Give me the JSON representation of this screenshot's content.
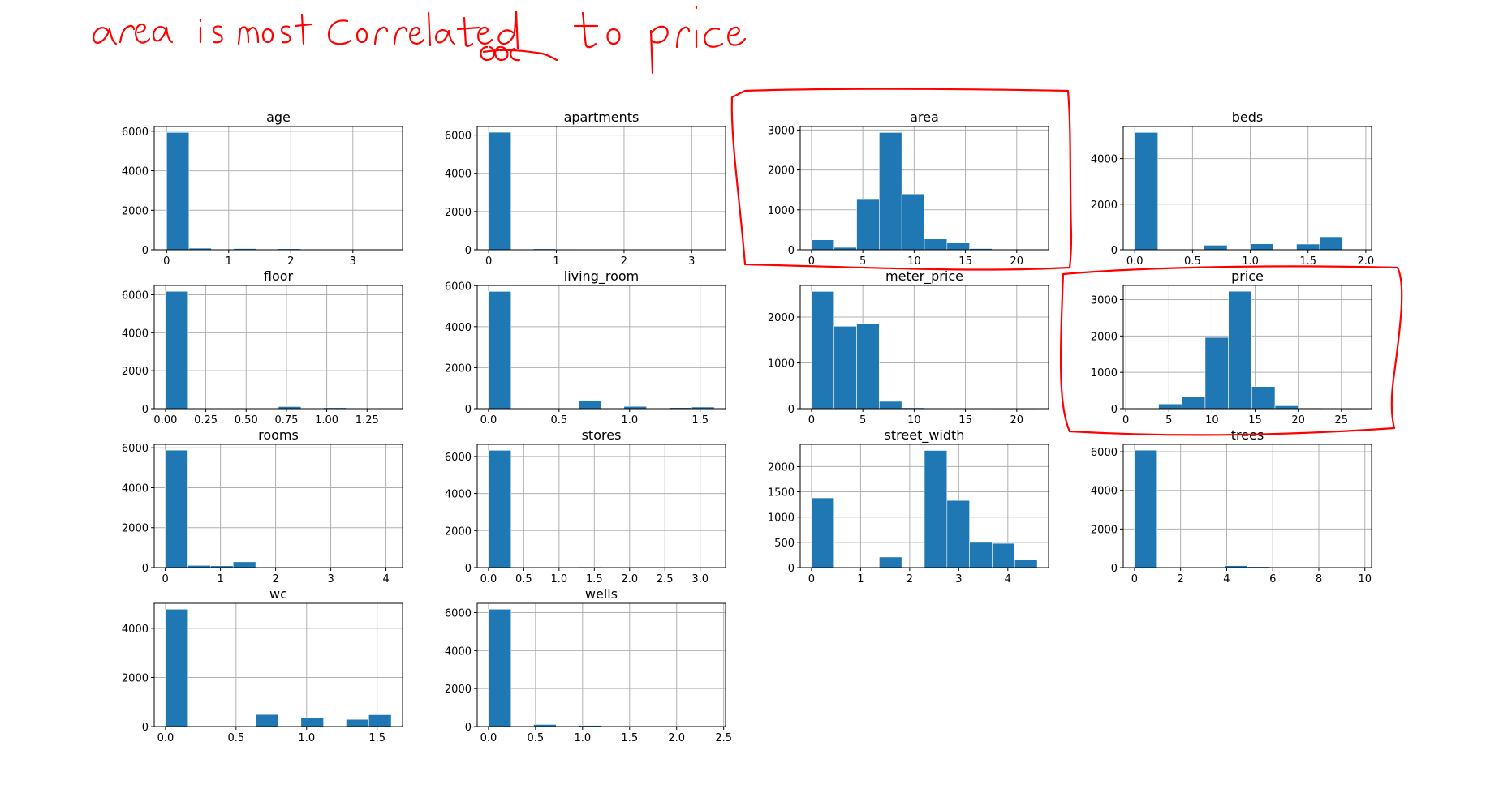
{
  "annotation": {
    "text": "area is most correlated to price",
    "color": "#ff0000"
  },
  "bar_color": "#1f77b4",
  "grid_color": "#b0b0b0",
  "chart_data": [
    {
      "type": "bar",
      "title": "age",
      "bins": [
        [
          0.0,
          0.36,
          5940
        ],
        [
          0.36,
          0.72,
          80
        ],
        [
          0.72,
          1.08,
          10
        ],
        [
          1.08,
          1.44,
          60
        ],
        [
          1.44,
          1.8,
          10
        ],
        [
          1.8,
          2.16,
          50
        ],
        [
          2.16,
          2.52,
          10
        ],
        [
          2.52,
          2.88,
          20
        ],
        [
          2.88,
          3.24,
          10
        ],
        [
          3.24,
          3.6,
          20
        ]
      ],
      "xlim": [
        -0.2,
        3.8
      ],
      "ylim": [
        0,
        6240
      ],
      "xticks": [
        0,
        1,
        2,
        3
      ],
      "xticklabels": [
        "0",
        "1",
        "2",
        "3"
      ],
      "yticks": [
        0,
        2000,
        4000,
        6000
      ],
      "yticklabels": [
        "0",
        "2000",
        "4000",
        "6000"
      ],
      "grid": true
    },
    {
      "type": "bar",
      "title": "apartments",
      "bins": [
        [
          0.0,
          0.33,
          6150
        ],
        [
          0.33,
          0.66,
          0
        ],
        [
          0.66,
          0.99,
          50
        ],
        [
          0.99,
          1.32,
          30
        ],
        [
          1.32,
          1.65,
          20
        ],
        [
          1.65,
          1.98,
          0
        ],
        [
          1.98,
          2.31,
          0
        ],
        [
          2.31,
          2.64,
          0
        ],
        [
          2.64,
          2.97,
          0
        ],
        [
          2.97,
          3.3,
          10
        ]
      ],
      "xlim": [
        -0.17,
        3.5
      ],
      "ylim": [
        0,
        6450
      ],
      "xticks": [
        0,
        1,
        2,
        3
      ],
      "xticklabels": [
        "0",
        "1",
        "2",
        "3"
      ],
      "yticks": [
        0,
        2000,
        4000,
        6000
      ],
      "yticklabels": [
        "0",
        "2000",
        "4000",
        "6000"
      ],
      "grid": true
    },
    {
      "type": "bar",
      "title": "area",
      "bins": [
        [
          0,
          2.2,
          250
        ],
        [
          2.2,
          4.4,
          60
        ],
        [
          4.4,
          6.6,
          1260
        ],
        [
          6.6,
          8.8,
          2940
        ],
        [
          8.8,
          11.0,
          1400
        ],
        [
          11.0,
          13.2,
          270
        ],
        [
          13.2,
          15.4,
          170
        ],
        [
          15.4,
          17.6,
          30
        ],
        [
          17.6,
          19.8,
          10
        ],
        [
          19.8,
          22.0,
          5
        ]
      ],
      "xlim": [
        -1.1,
        23.1
      ],
      "ylim": [
        0,
        3090
      ],
      "xticks": [
        0,
        5,
        10,
        15,
        20
      ],
      "xticklabels": [
        "0",
        "5",
        "10",
        "15",
        "20"
      ],
      "yticks": [
        0,
        1000,
        2000,
        3000
      ],
      "yticklabels": [
        "0",
        "1000",
        "2000",
        "3000"
      ],
      "grid": true
    },
    {
      "type": "bar",
      "title": "beds",
      "bins": [
        [
          0.0,
          0.2,
          5150
        ],
        [
          0.2,
          0.4,
          0
        ],
        [
          0.4,
          0.6,
          0
        ],
        [
          0.6,
          0.8,
          200
        ],
        [
          0.8,
          1.0,
          0
        ],
        [
          1.0,
          1.2,
          260
        ],
        [
          1.2,
          1.4,
          0
        ],
        [
          1.4,
          1.6,
          250
        ],
        [
          1.6,
          1.8,
          570
        ],
        [
          1.8,
          2.0,
          0
        ]
      ],
      "xlim": [
        -0.1,
        2.05
      ],
      "ylim": [
        0,
        5410
      ],
      "xticks": [
        0.0,
        0.5,
        1.0,
        1.5,
        2.0
      ],
      "xticklabels": [
        "0.0",
        "0.5",
        "1.0",
        "1.5",
        "2.0"
      ],
      "yticks": [
        0,
        2000,
        4000
      ],
      "yticklabels": [
        "0",
        "2000",
        "4000"
      ],
      "grid": true
    },
    {
      "type": "bar",
      "title": "floor",
      "bins": [
        [
          0.0,
          0.14,
          6180
        ],
        [
          0.14,
          0.28,
          0
        ],
        [
          0.28,
          0.42,
          0
        ],
        [
          0.42,
          0.56,
          0
        ],
        [
          0.56,
          0.7,
          0
        ],
        [
          0.7,
          0.84,
          110
        ],
        [
          0.84,
          0.98,
          0
        ],
        [
          0.98,
          1.12,
          50
        ],
        [
          1.12,
          1.26,
          0
        ],
        [
          1.26,
          1.4,
          10
        ]
      ],
      "xlim": [
        -0.07,
        1.47
      ],
      "ylim": [
        0,
        6490
      ],
      "xticks": [
        0.0,
        0.25,
        0.5,
        0.75,
        1.0,
        1.25
      ],
      "xticklabels": [
        "0.00",
        "0.25",
        "0.50",
        "0.75",
        "1.00",
        "1.25"
      ],
      "yticks": [
        0,
        2000,
        4000,
        6000
      ],
      "yticklabels": [
        "0",
        "2000",
        "4000",
        "6000"
      ],
      "grid": true
    },
    {
      "type": "bar",
      "title": "living_room",
      "bins": [
        [
          0.0,
          0.16,
          5720
        ],
        [
          0.16,
          0.32,
          0
        ],
        [
          0.32,
          0.48,
          0
        ],
        [
          0.48,
          0.64,
          0
        ],
        [
          0.64,
          0.8,
          400
        ],
        [
          0.8,
          0.96,
          0
        ],
        [
          0.96,
          1.12,
          110
        ],
        [
          1.12,
          1.28,
          0
        ],
        [
          1.28,
          1.44,
          50
        ],
        [
          1.44,
          1.6,
          80
        ]
      ],
      "xlim": [
        -0.08,
        1.68
      ],
      "ylim": [
        0,
        6010
      ],
      "xticks": [
        0.0,
        0.5,
        1.0,
        1.5
      ],
      "xticklabels": [
        "0.0",
        "0.5",
        "1.0",
        "1.5"
      ],
      "yticks": [
        0,
        2000,
        4000,
        6000
      ],
      "yticklabels": [
        "0",
        "2000",
        "4000",
        "6000"
      ],
      "grid": true
    },
    {
      "type": "bar",
      "title": "meter_price",
      "bins": [
        [
          0,
          2.2,
          2560
        ],
        [
          2.2,
          4.4,
          1800
        ],
        [
          4.4,
          6.6,
          1860
        ],
        [
          6.6,
          8.8,
          160
        ],
        [
          8.8,
          11.0,
          20
        ],
        [
          11.0,
          13.2,
          10
        ],
        [
          13.2,
          15.4,
          5
        ],
        [
          15.4,
          17.6,
          3
        ],
        [
          17.6,
          19.8,
          2
        ],
        [
          19.8,
          22.0,
          2
        ]
      ],
      "xlim": [
        -1.1,
        23.1
      ],
      "ylim": [
        0,
        2690
      ],
      "xticks": [
        0,
        5,
        10,
        15,
        20
      ],
      "xticklabels": [
        "0",
        "5",
        "10",
        "15",
        "20"
      ],
      "yticks": [
        0,
        1000,
        2000
      ],
      "yticklabels": [
        "0",
        "1000",
        "2000"
      ],
      "grid": true
    },
    {
      "type": "bar",
      "title": "price",
      "bins": [
        [
          1.1,
          3.8,
          10
        ],
        [
          3.8,
          6.5,
          130
        ],
        [
          6.5,
          9.2,
          330
        ],
        [
          9.2,
          11.9,
          1960
        ],
        [
          11.9,
          14.6,
          3230
        ],
        [
          14.6,
          17.3,
          610
        ],
        [
          17.3,
          20.0,
          80
        ],
        [
          20.0,
          22.7,
          20
        ],
        [
          22.7,
          25.4,
          5
        ],
        [
          25.4,
          28.1,
          2
        ]
      ],
      "xlim": [
        -0.3,
        28.5
      ],
      "ylim": [
        0,
        3390
      ],
      "xticks": [
        0,
        5,
        10,
        15,
        20,
        25
      ],
      "xticklabels": [
        "0",
        "5",
        "10",
        "15",
        "20",
        "25"
      ],
      "yticks": [
        0,
        1000,
        2000,
        3000
      ],
      "yticklabels": [
        "0",
        "1000",
        "2000",
        "3000"
      ],
      "grid": true
    },
    {
      "type": "bar",
      "title": "rooms",
      "bins": [
        [
          0.0,
          0.41,
          5880
        ],
        [
          0.41,
          0.82,
          110
        ],
        [
          0.82,
          1.23,
          90
        ],
        [
          1.23,
          1.64,
          290
        ],
        [
          1.64,
          2.05,
          10
        ],
        [
          2.05,
          2.46,
          5
        ],
        [
          2.46,
          2.87,
          3
        ],
        [
          2.87,
          3.28,
          3
        ],
        [
          3.28,
          3.69,
          2
        ],
        [
          3.69,
          4.1,
          2
        ]
      ],
      "xlim": [
        -0.2,
        4.3
      ],
      "ylim": [
        0,
        6170
      ],
      "xticks": [
        0,
        1,
        2,
        3,
        4
      ],
      "xticklabels": [
        "0",
        "1",
        "2",
        "3",
        "4"
      ],
      "yticks": [
        0,
        2000,
        4000,
        6000
      ],
      "yticklabels": [
        "0",
        "2000",
        "4000",
        "6000"
      ],
      "grid": true
    },
    {
      "type": "bar",
      "title": "stores",
      "bins": [
        [
          0.0,
          0.32,
          6330
        ],
        [
          0.32,
          0.64,
          0
        ],
        [
          0.64,
          0.96,
          0
        ],
        [
          0.96,
          1.28,
          0
        ],
        [
          1.28,
          1.6,
          40
        ],
        [
          1.6,
          1.92,
          20
        ],
        [
          1.92,
          2.24,
          0
        ],
        [
          2.24,
          2.56,
          0
        ],
        [
          2.56,
          2.88,
          0
        ],
        [
          2.88,
          3.2,
          10
        ]
      ],
      "xlim": [
        -0.16,
        3.36
      ],
      "ylim": [
        0,
        6650
      ],
      "xticks": [
        0.0,
        0.5,
        1.0,
        1.5,
        2.0,
        2.5,
        3.0
      ],
      "xticklabels": [
        "0.0",
        "0.5",
        "1.0",
        "1.5",
        "2.0",
        "2.5",
        "3.0"
      ],
      "yticks": [
        0,
        2000,
        4000,
        6000
      ],
      "yticklabels": [
        "0",
        "2000",
        "4000",
        "6000"
      ],
      "grid": true
    },
    {
      "type": "bar",
      "title": "street_width",
      "bins": [
        [
          0,
          0.46,
          1380
        ],
        [
          0.46,
          0.92,
          0
        ],
        [
          0.92,
          1.38,
          0
        ],
        [
          1.38,
          1.84,
          210
        ],
        [
          1.84,
          2.3,
          0
        ],
        [
          2.3,
          2.76,
          2320
        ],
        [
          2.76,
          3.22,
          1330
        ],
        [
          3.22,
          3.68,
          500
        ],
        [
          3.68,
          4.14,
          480
        ],
        [
          4.14,
          4.6,
          160
        ]
      ],
      "xlim": [
        -0.23,
        4.83
      ],
      "ylim": [
        0,
        2440
      ],
      "xticks": [
        0,
        1,
        2,
        3,
        4
      ],
      "xticklabels": [
        "0",
        "1",
        "2",
        "3",
        "4"
      ],
      "yticks": [
        0,
        500,
        1000,
        1500,
        2000
      ],
      "yticklabels": [
        "0",
        "500",
        "1000",
        "1500",
        "2000"
      ],
      "grid": true
    },
    {
      "type": "bar",
      "title": "trees",
      "bins": [
        [
          0,
          0.98,
          6080
        ],
        [
          0.98,
          1.96,
          0
        ],
        [
          1.96,
          2.94,
          0
        ],
        [
          2.94,
          3.92,
          30
        ],
        [
          3.92,
          4.9,
          100
        ],
        [
          4.9,
          5.88,
          50
        ],
        [
          5.88,
          6.86,
          20
        ],
        [
          6.86,
          7.84,
          10
        ],
        [
          7.84,
          8.82,
          20
        ],
        [
          8.82,
          9.8,
          5
        ]
      ],
      "xlim": [
        -0.49,
        10.29
      ],
      "ylim": [
        0,
        6380
      ],
      "xticks": [
        0,
        2,
        4,
        6,
        8,
        10
      ],
      "xticklabels": [
        "0",
        "2",
        "4",
        "6",
        "8",
        "10"
      ],
      "yticks": [
        0,
        2000,
        4000,
        6000
      ],
      "yticklabels": [
        "0",
        "2000",
        "4000",
        "6000"
      ],
      "grid": true
    },
    {
      "type": "bar",
      "title": "wc",
      "bins": [
        [
          0.0,
          0.16,
          4780
        ],
        [
          0.16,
          0.32,
          0
        ],
        [
          0.32,
          0.48,
          0
        ],
        [
          0.48,
          0.64,
          0
        ],
        [
          0.64,
          0.8,
          490
        ],
        [
          0.8,
          0.96,
          0
        ],
        [
          0.96,
          1.12,
          360
        ],
        [
          1.12,
          1.28,
          0
        ],
        [
          1.28,
          1.44,
          290
        ],
        [
          1.44,
          1.6,
          480
        ]
      ],
      "xlim": [
        -0.08,
        1.68
      ],
      "ylim": [
        0,
        5020
      ],
      "xticks": [
        0.0,
        0.5,
        1.0,
        1.5
      ],
      "xticklabels": [
        "0.0",
        "0.5",
        "1.0",
        "1.5"
      ],
      "yticks": [
        0,
        2000,
        4000
      ],
      "yticklabels": [
        "0",
        "2000",
        "4000"
      ],
      "grid": true
    },
    {
      "type": "bar",
      "title": "wells",
      "bins": [
        [
          0.0,
          0.24,
          6180
        ],
        [
          0.24,
          0.48,
          0
        ],
        [
          0.48,
          0.72,
          110
        ],
        [
          0.72,
          0.96,
          0
        ],
        [
          0.96,
          1.2,
          60
        ],
        [
          1.2,
          1.44,
          30
        ],
        [
          1.44,
          1.68,
          20
        ],
        [
          1.68,
          1.92,
          0
        ],
        [
          1.92,
          2.16,
          0
        ],
        [
          2.16,
          2.4,
          10
        ]
      ],
      "xlim": [
        -0.12,
        2.52
      ],
      "ylim": [
        0,
        6490
      ],
      "xticks": [
        0.0,
        0.5,
        1.0,
        1.5,
        2.0,
        2.5
      ],
      "xticklabels": [
        "0.0",
        "0.5",
        "1.0",
        "1.5",
        "2.0",
        "2.5"
      ],
      "yticks": [
        0,
        2000,
        4000,
        6000
      ],
      "yticklabels": [
        "0",
        "2000",
        "4000",
        "6000"
      ],
      "grid": true
    }
  ]
}
